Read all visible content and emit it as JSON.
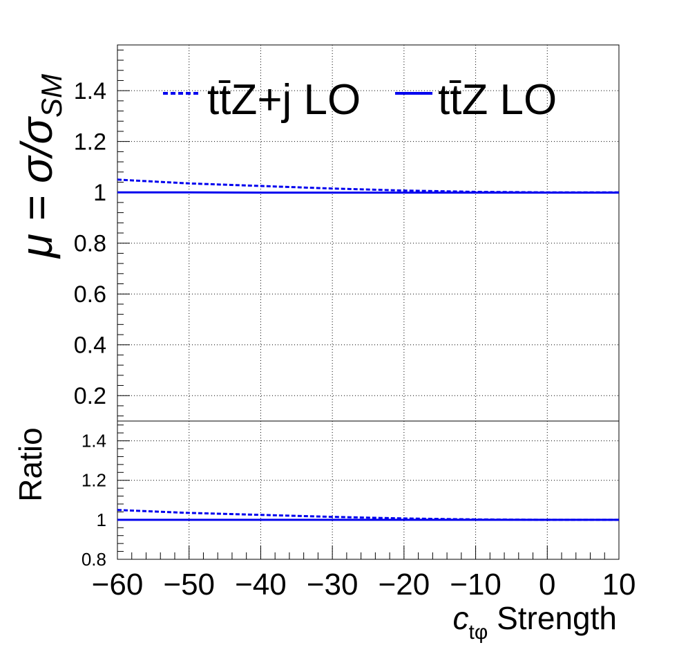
{
  "chart_data": [
    {
      "type": "line",
      "panel": "main",
      "ylabel_main": "μ = σ/σ",
      "ylabel_sub": "SM",
      "xlim": [
        -60,
        10
      ],
      "ylim": [
        0.1,
        1.58
      ],
      "yticks": [
        "0.2",
        "0.4",
        "0.6",
        "0.8",
        "1",
        "1.2",
        "1.4"
      ],
      "grid": true,
      "legend_position": "top",
      "series": [
        {
          "name": "tt̄Z+j LO",
          "style": "dashed",
          "color": "#0000ee",
          "x": [
            -60,
            -50,
            -40,
            -30,
            -20,
            -10,
            0,
            10
          ],
          "y": [
            1.05,
            1.035,
            1.025,
            1.015,
            1.007,
            1.002,
            1.0,
            1.0
          ]
        },
        {
          "name": "tt̄Z LO",
          "style": "solid",
          "color": "#0000ee",
          "x": [
            -60,
            -50,
            -40,
            -30,
            -20,
            -10,
            0,
            10
          ],
          "y": [
            1.0,
            1.0,
            0.999,
            0.999,
            0.999,
            0.999,
            0.999,
            0.999
          ]
        }
      ]
    },
    {
      "type": "line",
      "panel": "ratio",
      "ylabel": "Ratio",
      "xlim": [
        -60,
        10
      ],
      "ylim": [
        0.8,
        1.5
      ],
      "yticks": [
        "0.8",
        "1",
        "1.2",
        "1.4"
      ],
      "xticks": [
        "−60",
        "−50",
        "−40",
        "−30",
        "−20",
        "−10",
        "0",
        "10"
      ],
      "xlabel_italic": "c",
      "xlabel_sub": "tφ",
      "xlabel_rest": " Strength",
      "grid": true,
      "series": [
        {
          "name": "tt̄Z+j LO",
          "style": "dashed",
          "color": "#0000ee",
          "x": [
            -60,
            -50,
            -40,
            -30,
            -20,
            -10,
            0,
            10
          ],
          "y": [
            1.05,
            1.035,
            1.025,
            1.015,
            1.007,
            1.002,
            1.0,
            1.0
          ]
        },
        {
          "name": "tt̄Z LO",
          "style": "solid",
          "color": "#0000ee",
          "x": [
            -60,
            -50,
            -40,
            -30,
            -20,
            -10,
            0,
            10
          ],
          "y": [
            1.0,
            1.0,
            1.0,
            1.0,
            1.0,
            1.0,
            1.0,
            1.0
          ]
        }
      ]
    }
  ],
  "legend": {
    "dashed_label": "tt̄Z+j LO",
    "solid_label": "tt̄Z LO"
  }
}
